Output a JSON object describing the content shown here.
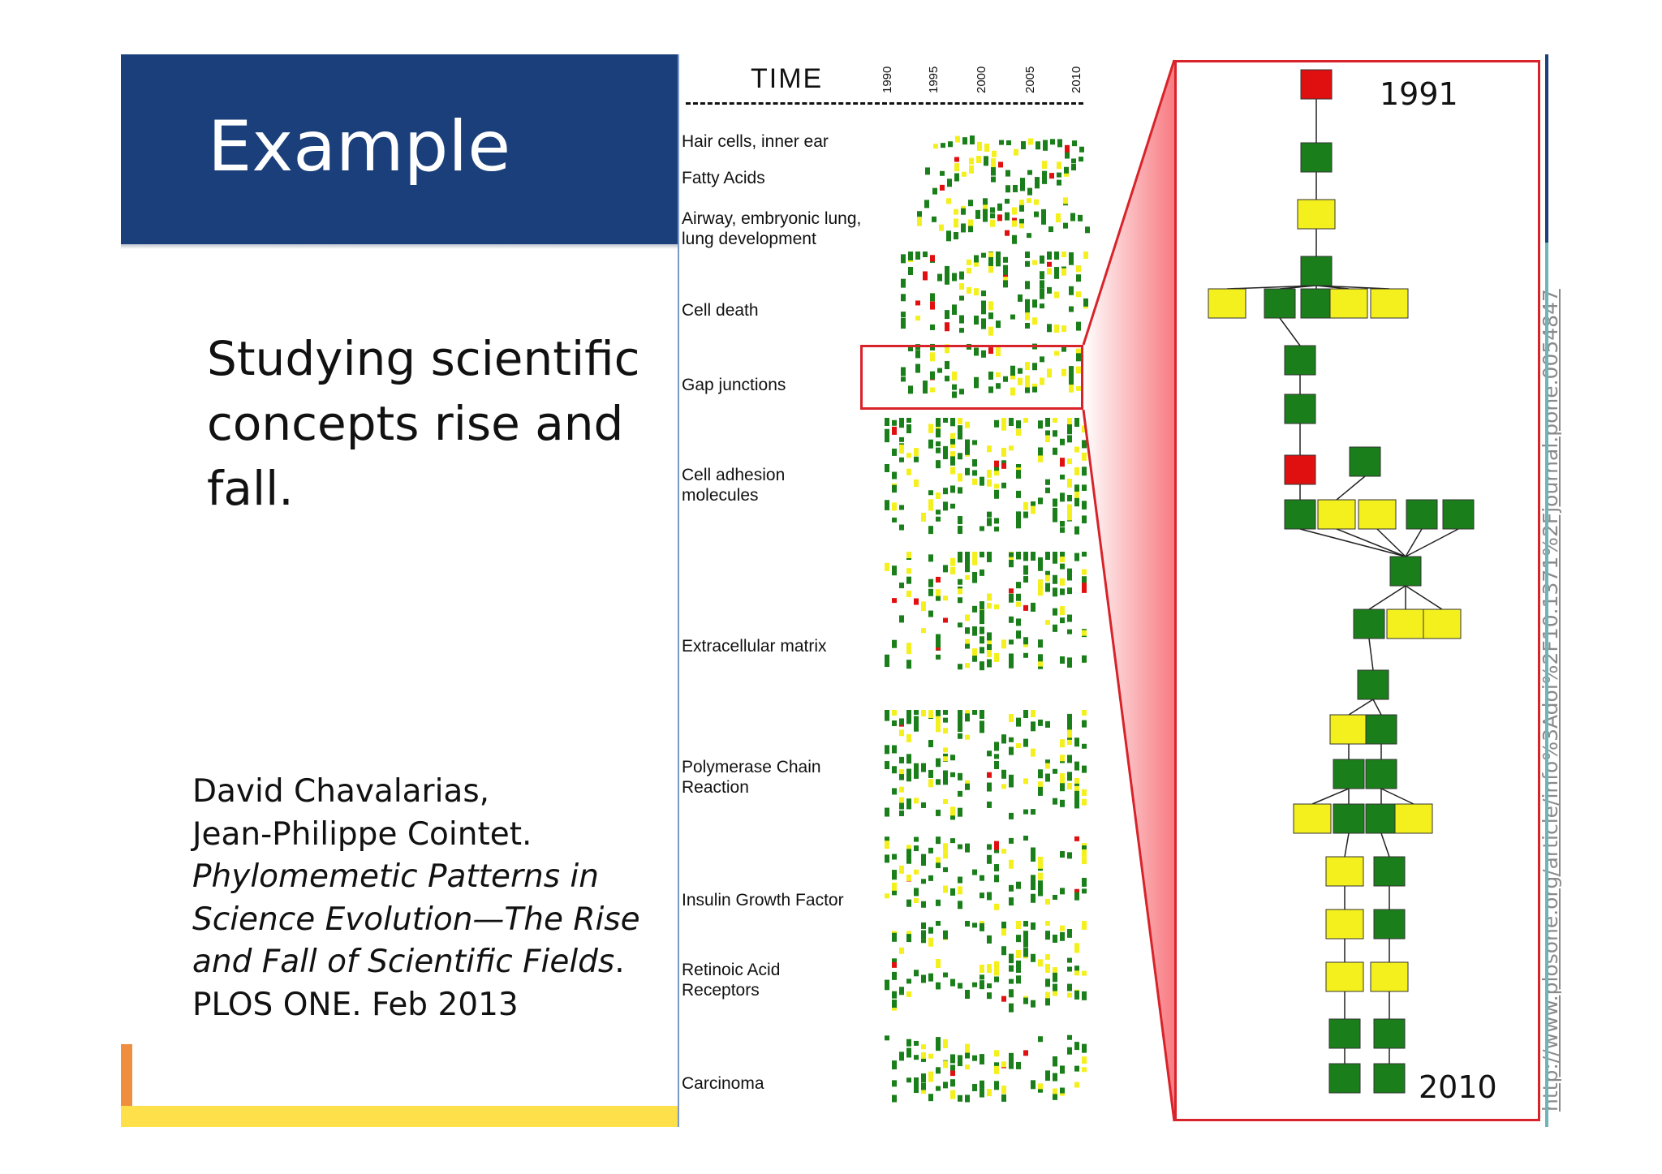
{
  "slide": {
    "title": "Example",
    "headline": "Studying scientific concepts rise and fall.",
    "citation": {
      "authors_line1": "David Chavalarias,",
      "authors_line2": "Jean-Philippe Cointet.",
      "title_italic": "Phylomemetic Patterns in Science Evolution—The Rise and Fall of Scientific Fields",
      "title_end": ".",
      "venue": "PLOS ONE. Feb 2013"
    }
  },
  "figure": {
    "time_label": "TIME",
    "years": [
      "1990",
      "1995",
      "2000",
      "2005",
      "2010"
    ],
    "topics": [
      "Hair cells, inner ear",
      "Fatty Acids",
      "Airway, embryonic lung, lung development",
      "Cell death",
      "Gap junctions",
      "Cell adhesion molecules",
      "Extracellular matrix",
      "Polymerase Chain Reaction",
      "Insulin Growth Factor",
      "Retinoic Acid Receptors",
      "Carcinoma"
    ],
    "detail_start_year": "1991",
    "detail_end_year": "2010",
    "source_url": "http://www.plosone.org/article/info%3Adoi%2F10.1371%2Fjournal.pone.0054847"
  },
  "colors": {
    "green": "#1a7f1a",
    "yellow": "#f4f01e",
    "red": "#e01010",
    "title_band": "#1a3f7a",
    "highlight": "#d8232a"
  }
}
